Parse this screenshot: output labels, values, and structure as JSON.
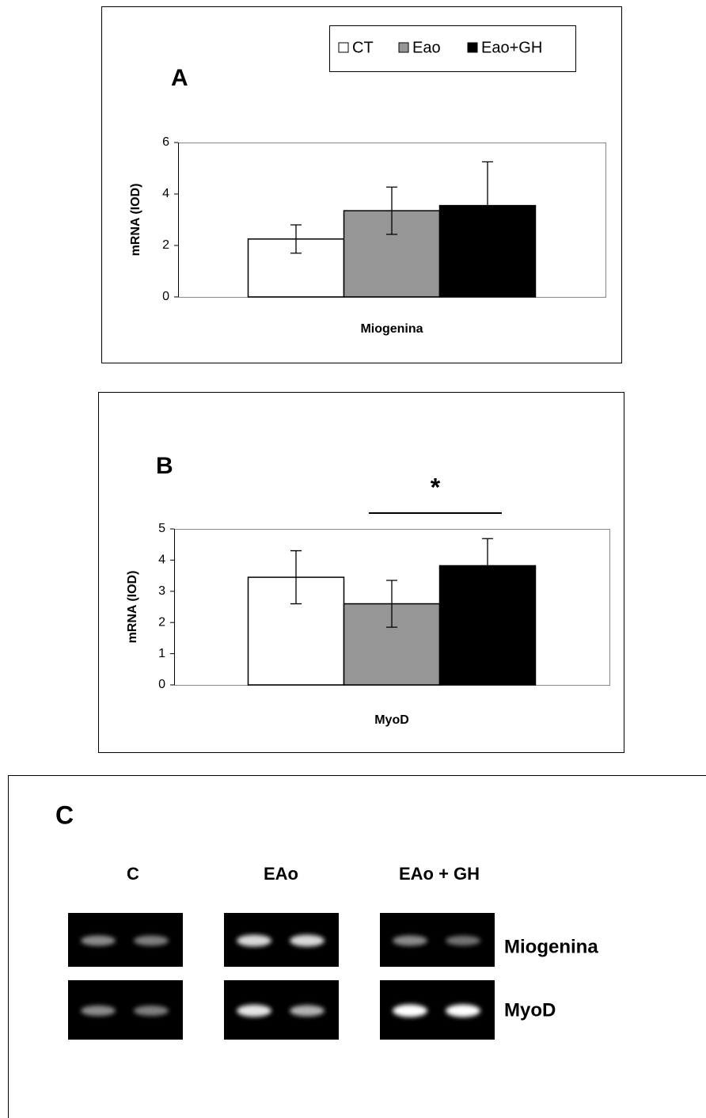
{
  "chart_data": [
    {
      "type": "bar",
      "panel_label": "A",
      "y_label": "mRNA (IOD)",
      "categories": [
        "Miogenina"
      ],
      "series": [
        {
          "name": "CT",
          "color": "#ffffff",
          "values": [
            2.25
          ],
          "errors": [
            0.55
          ]
        },
        {
          "name": "Eao",
          "color": "#969696",
          "values": [
            3.35
          ],
          "errors": [
            0.92
          ]
        },
        {
          "name": "Eao+GH",
          "color": "#000000",
          "values": [
            3.55
          ],
          "errors": [
            1.7
          ]
        }
      ],
      "ylim": [
        0,
        6
      ],
      "yticks": [
        0,
        2,
        4,
        6
      ],
      "legend": "top-right"
    },
    {
      "type": "bar",
      "panel_label": "B",
      "y_label": "mRNA (IOD)",
      "categories": [
        "MyoD"
      ],
      "series": [
        {
          "color": "#ffffff",
          "values": [
            3.45
          ],
          "errors": [
            0.85
          ]
        },
        {
          "color": "#969696",
          "values": [
            2.6
          ],
          "errors": [
            0.75
          ]
        },
        {
          "color": "#000000",
          "values": [
            3.82
          ],
          "errors": [
            0.87
          ]
        }
      ],
      "ylim": [
        0,
        5
      ],
      "yticks": [
        0,
        1,
        2,
        3,
        4,
        5
      ],
      "annotation": "*"
    }
  ],
  "gel": {
    "panel_label": "C",
    "columns": [
      "C",
      "EAo",
      "EAo + GH"
    ],
    "rows": [
      "Miogenina",
      "MyoD"
    ]
  }
}
